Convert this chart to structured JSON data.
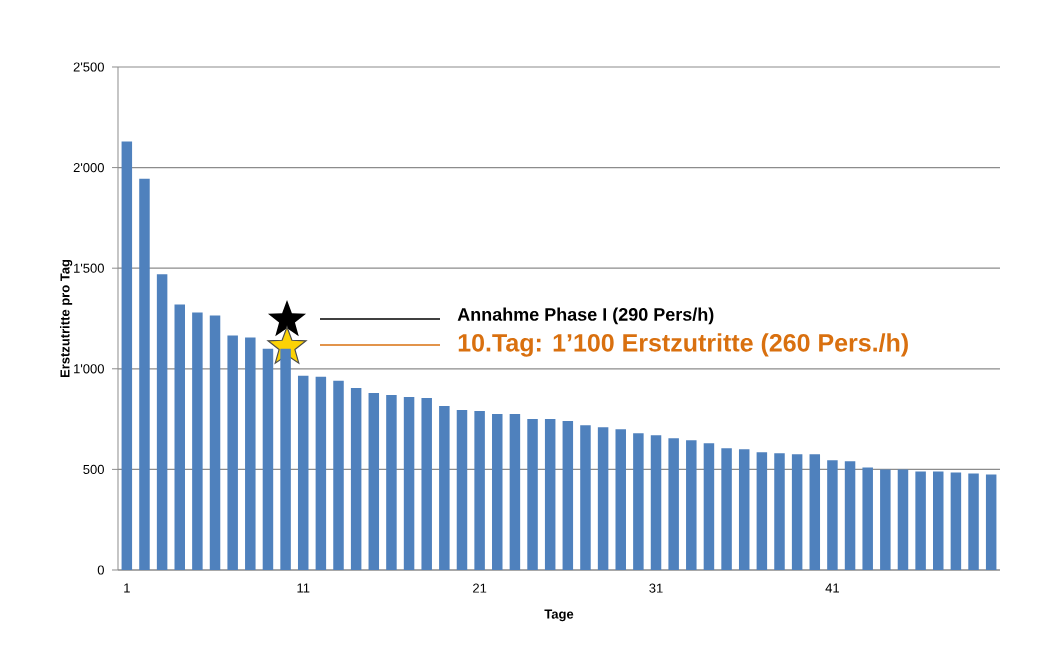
{
  "chart_data": {
    "type": "bar",
    "xlabel": "Tage",
    "ylabel": "Erstzutritte pro Tag",
    "categories": [
      "1",
      null,
      null,
      null,
      null,
      null,
      null,
      null,
      null,
      null,
      "11",
      null,
      null,
      null,
      null,
      null,
      null,
      null,
      null,
      null,
      "21",
      null,
      null,
      null,
      null,
      null,
      null,
      null,
      null,
      null,
      "31",
      null,
      null,
      null,
      null,
      null,
      null,
      null,
      null,
      null,
      "41",
      null,
      null,
      null,
      null,
      null,
      null,
      null,
      null,
      null
    ],
    "values": [
      2130,
      1945,
      1470,
      1320,
      1280,
      1265,
      1165,
      1155,
      1100,
      1100,
      965,
      960,
      940,
      905,
      880,
      870,
      860,
      855,
      815,
      795,
      790,
      775,
      775,
      750,
      750,
      740,
      720,
      710,
      700,
      680,
      670,
      655,
      645,
      630,
      605,
      600,
      585,
      580,
      575,
      575,
      545,
      540,
      510,
      500,
      500,
      490,
      490,
      485,
      480,
      475
    ],
    "color": "#4f81bd",
    "ylim": [
      0,
      2500
    ],
    "yticks": [
      0,
      500,
      {
        "value": 1000,
        "label": "1'000"
      },
      {
        "value": 1500,
        "label": "1'500"
      },
      {
        "value": 2000,
        "label": "2'000"
      },
      {
        "value": 2500,
        "label": "2'500"
      }
    ],
    "grid": "y",
    "annotations": [
      "Annahme Phase I (290 Pers/h)",
      "10.Tag: 1’100 Erstzutritte (260 Pers./h)"
    ]
  }
}
